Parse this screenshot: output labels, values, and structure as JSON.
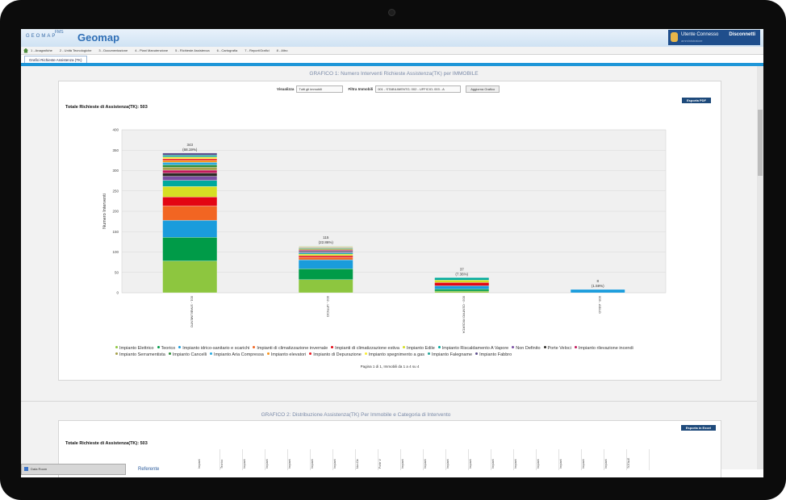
{
  "app": {
    "logo_text": "GEOMAP",
    "logo_fms": "FMS",
    "title": "Geomap",
    "user_label": "Utente Connesso",
    "user_sub": "amministratore",
    "logout_label": "Disconnetti"
  },
  "menu": {
    "items": [
      "1 - Anagrafiche",
      "2 - Unità Tecnologiche",
      "3 - Documentazione",
      "4 - Piani Manutenzione",
      "5 - Richieste Assistenza",
      "6 - Cartografia",
      "7 - Report/Grafici",
      "8 - Altro"
    ]
  },
  "tab": {
    "label": "Grafici Richieste Assistenza (TK)"
  },
  "chart1": {
    "title": "GRAFICO 1: Numero Interventi Richieste Assistenza(TK) per IMMOBILE",
    "filter_view_label": "Visualizza",
    "filter_view_value": "Tutti gli immobili",
    "filter_building_label": "Filtra Immobili",
    "filter_building_value": "001 - STABILIMENTO; 002 - UFFICIO; 003 - A",
    "update_button": "Aggiorna Grafico",
    "pdf_button": "Esporta PDF",
    "total_label": "Totale Richieste di Assistenza(TK): 503",
    "pager": "Pagina 1 di 1, Immobili da 1 a 4 su 4"
  },
  "chart_data": {
    "type": "bar",
    "stacked": true,
    "ylabel": "Numero Interventi",
    "ylim": [
      0,
      400
    ],
    "yticks": [
      0,
      50,
      100,
      150,
      200,
      250,
      300,
      350,
      400
    ],
    "grid": true,
    "legend_position": "bottom",
    "categories": [
      "001 - STABILIMENTO",
      "002 - UFFICIO",
      "003 - CENTRO RICERCA",
      "005 - ASILO"
    ],
    "totals": [
      343,
      115,
      37,
      8
    ],
    "total_labels": [
      "343",
      "115",
      "37",
      "8"
    ],
    "percent_labels": [
      "(68.19%)",
      "(22.86%)",
      "(7.36%)",
      "(1.59%)"
    ],
    "series": [
      {
        "name": "Impianto Elettrico",
        "color": "#8dc63f",
        "values": [
          78,
          32,
          4,
          0
        ]
      },
      {
        "name": "Teorico",
        "color": "#009b48",
        "values": [
          58,
          27,
          5,
          0
        ]
      },
      {
        "name": "Impianto idrico-sanitario e scarichi",
        "color": "#1a9cdc",
        "values": [
          42,
          22,
          8,
          8
        ]
      },
      {
        "name": "Impianti di climatizzazione invernale",
        "color": "#f26522",
        "values": [
          35,
          6,
          0,
          0
        ]
      },
      {
        "name": "Impianti di climatizzazione estiva",
        "color": "#e30613",
        "values": [
          22,
          4,
          8,
          0
        ]
      },
      {
        "name": "Impianto Edile",
        "color": "#d6df23",
        "values": [
          26,
          4,
          6,
          0
        ]
      },
      {
        "name": "Impianto Riscaldamento A Vapore",
        "color": "#00a99d",
        "values": [
          15,
          3,
          6,
          0
        ]
      },
      {
        "name": "Non Definito",
        "color": "#7b4ea3",
        "values": [
          10,
          3,
          0,
          0
        ]
      },
      {
        "name": "Porte Veloci",
        "color": "#2d2a26",
        "values": [
          8,
          2,
          0,
          0
        ]
      },
      {
        "name": "Impianto rilevazione incendi",
        "color": "#c2185b",
        "values": [
          7,
          2,
          0,
          0
        ]
      },
      {
        "name": "Impianto Serramentista",
        "color": "#a6a04a",
        "values": [
          7,
          3,
          0,
          0
        ]
      },
      {
        "name": "Impianto Cancelli",
        "color": "#2f8f3a",
        "values": [
          6,
          2,
          0,
          0
        ]
      },
      {
        "name": "Impianto Aria Compressa",
        "color": "#29abe2",
        "values": [
          6,
          1,
          0,
          0
        ]
      },
      {
        "name": "Impianto elevatori",
        "color": "#f7941d",
        "values": [
          5,
          1,
          0,
          0
        ]
      },
      {
        "name": "Impianto di Depurazione",
        "color": "#ed1c24",
        "values": [
          4,
          1,
          0,
          0
        ]
      },
      {
        "name": "Impianto spegnimento a gas",
        "color": "#f9ed32",
        "values": [
          4,
          1,
          0,
          0
        ]
      },
      {
        "name": "Impianto Falegname",
        "color": "#26a69a",
        "values": [
          5,
          1,
          0,
          0
        ]
      },
      {
        "name": "Impianto Fabbro",
        "color": "#5d4e8c",
        "values": [
          5,
          0,
          0,
          0
        ]
      }
    ]
  },
  "chart2": {
    "title": "GRAFICO 2: Distribuzione Assistenza(TK) Per Immobile e Categoria di Intervento",
    "excel_button": "Esporta in Excel",
    "total_label": "Totale Richieste di Assistenza(TK): 503",
    "row_label": "Referente",
    "columns": [
      "Impiant",
      "Teorico",
      "Impiant",
      "Impiant",
      "Impiant",
      "Impiant",
      "Impiant",
      "Non De",
      "Porte V",
      "Impiant",
      "Impiant",
      "Impiant",
      "Impiant",
      "Impiant",
      "Impiant",
      "Impiant",
      "Impiant",
      "Impiant",
      "Impiant",
      "TOTALE"
    ]
  },
  "taskbar": {
    "label": "Data Room"
  }
}
